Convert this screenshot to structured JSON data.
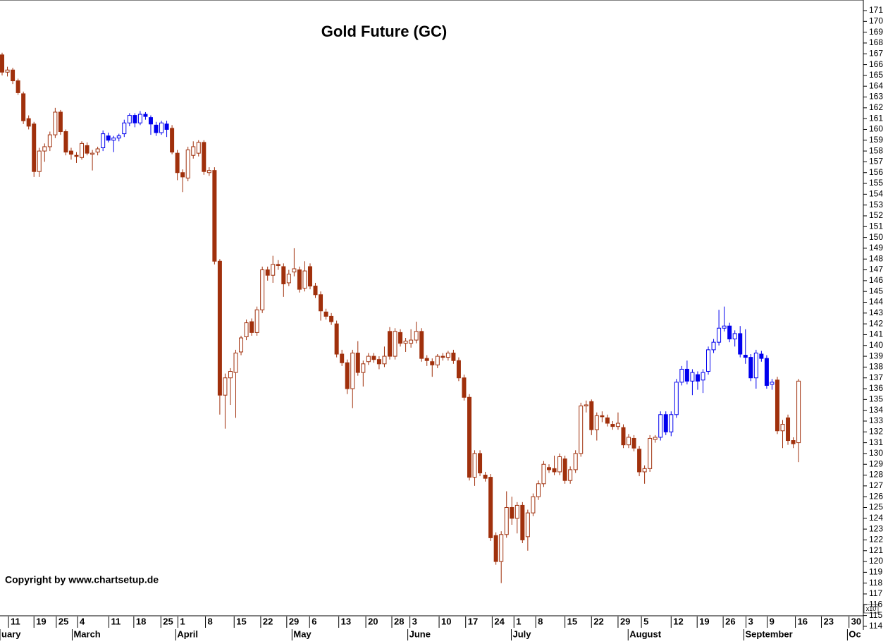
{
  "chart_data": {
    "type": "candlestick",
    "title": "Gold Future  (GC)",
    "copyright": "Copyright by www.chartsetup.de",
    "y_unit_label": "x10",
    "ylim": [
      113.67,
      171.98
    ],
    "xlim": [
      -0.4,
      161.8
    ],
    "yticks": [
      114,
      115,
      116,
      117,
      118,
      119,
      120,
      121,
      122,
      123,
      124,
      125,
      126,
      127,
      128,
      129,
      130,
      131,
      132,
      133,
      134,
      135,
      136,
      137,
      138,
      139,
      140,
      141,
      142,
      143,
      144,
      145,
      146,
      147,
      148,
      149,
      150,
      151,
      152,
      153,
      154,
      155,
      156,
      157,
      158,
      159,
      160,
      161,
      162,
      163,
      164,
      165,
      166,
      167,
      168,
      169,
      170,
      171
    ],
    "xticks": [
      {
        "value": 1.2,
        "label": "11"
      },
      {
        "value": 6,
        "label": "19"
      },
      {
        "value": 10.2,
        "label": "25"
      },
      {
        "value": 14.2,
        "label": "4"
      },
      {
        "value": 20.1,
        "label": "11"
      },
      {
        "value": 24.8,
        "label": "18"
      },
      {
        "value": 29.9,
        "label": "25"
      },
      {
        "value": 33.1,
        "label": "1"
      },
      {
        "value": 38.3,
        "label": "8"
      },
      {
        "value": 43.7,
        "label": "15"
      },
      {
        "value": 48.7,
        "label": "22"
      },
      {
        "value": 53.6,
        "label": "29"
      },
      {
        "value": 57.9,
        "label": "6"
      },
      {
        "value": 63.4,
        "label": "13"
      },
      {
        "value": 68.5,
        "label": "20"
      },
      {
        "value": 73.4,
        "label": "28"
      },
      {
        "value": 76.8,
        "label": "3"
      },
      {
        "value": 82.3,
        "label": "10"
      },
      {
        "value": 87.3,
        "label": "17"
      },
      {
        "value": 92.3,
        "label": "24"
      },
      {
        "value": 96.4,
        "label": "1"
      },
      {
        "value": 100.5,
        "label": "8"
      },
      {
        "value": 106,
        "label": "15"
      },
      {
        "value": 111,
        "label": "22"
      },
      {
        "value": 116,
        "label": "29"
      },
      {
        "value": 120.4,
        "label": "5"
      },
      {
        "value": 126,
        "label": "12"
      },
      {
        "value": 130.9,
        "label": "19"
      },
      {
        "value": 135.8,
        "label": "26"
      },
      {
        "value": 140.1,
        "label": "3"
      },
      {
        "value": 144.1,
        "label": "9"
      },
      {
        "value": 149.4,
        "label": "16"
      },
      {
        "value": 154.3,
        "label": "23"
      },
      {
        "value": 159.5,
        "label": "30"
      }
    ],
    "months": [
      {
        "value": -0.4,
        "label": "uary"
      },
      {
        "value": 13.2,
        "label": "March"
      },
      {
        "value": 32.7,
        "label": "April"
      },
      {
        "value": 54.6,
        "label": "May"
      },
      {
        "value": 76.4,
        "label": "June"
      },
      {
        "value": 95.9,
        "label": "July"
      },
      {
        "value": 117.9,
        "label": "August"
      },
      {
        "value": 139.7,
        "label": "September"
      },
      {
        "value": 159.2,
        "label": "Oc"
      }
    ],
    "segments": [
      {
        "color": "#a0300c",
        "candles": [
          [
            166.9,
            167.1,
            165,
            165.3
          ],
          [
            165.3,
            165.8,
            164.9,
            165.5
          ],
          [
            165.5,
            165.7,
            164.2,
            164.5
          ],
          [
            164.5,
            164.7,
            163.2,
            163.4
          ],
          [
            163.3,
            163.5,
            160.5,
            160.8
          ],
          [
            161,
            161.3,
            160,
            160.3
          ],
          [
            160.5,
            160.7,
            155.6,
            156.1
          ],
          [
            156.1,
            158.3,
            155.6,
            158
          ],
          [
            158,
            158.7,
            157,
            158.4
          ],
          [
            158.4,
            159.8,
            158,
            159.5
          ],
          [
            159.5,
            162,
            159.2,
            161.6
          ],
          [
            161.6,
            161.8,
            159.5,
            159.8
          ],
          [
            159.8,
            160,
            157.6,
            157.9
          ],
          [
            158,
            158.3,
            157.2,
            157.7
          ],
          [
            157.6,
            157.9,
            156.9,
            157.5
          ],
          [
            157.4,
            158.9,
            157.2,
            158.7
          ],
          [
            158.5,
            158.8,
            157.6,
            157.8
          ],
          [
            157.7,
            158.1,
            156.2,
            157.8
          ],
          [
            157.9,
            158.4,
            157.6,
            158.2
          ]
        ]
      },
      {
        "color": "#0000ee",
        "candles": [
          [
            158.3,
            159.9,
            158,
            159.6
          ],
          [
            159.4,
            159.7,
            158.8,
            159
          ],
          [
            159,
            159.4,
            157.9,
            159.2
          ],
          [
            159.2,
            159.6,
            158.9,
            159.4
          ],
          [
            159.6,
            160.9,
            159.3,
            160.6
          ],
          [
            160.6,
            161.5,
            160.3,
            161.3
          ],
          [
            161.3,
            161.5,
            160.2,
            160.6
          ],
          [
            160.6,
            161.7,
            160.4,
            161.4
          ],
          [
            161.4,
            161.6,
            160.9,
            161.2
          ],
          [
            161.1,
            161.3,
            159.5,
            160.5
          ],
          [
            160.4,
            160.7,
            159.4,
            159.7
          ],
          [
            159.7,
            160.8,
            159.5,
            160.6
          ],
          [
            160.5,
            160.8,
            159.3,
            160
          ]
        ]
      },
      {
        "color": "#a0300c",
        "candles": [
          [
            160.1,
            160.4,
            157.7,
            157.9
          ],
          [
            157.8,
            158.1,
            155.3,
            156
          ],
          [
            156,
            156.3,
            154.2,
            155.6
          ],
          [
            155.5,
            158.4,
            155.2,
            158.1
          ],
          [
            157.6,
            158.9,
            157.3,
            158.4
          ],
          [
            157.8,
            159,
            157.5,
            158.8
          ],
          [
            158.8,
            159,
            155.8,
            156.1
          ],
          [
            156,
            156.5,
            155.7,
            156.2
          ],
          [
            156.2,
            156.5,
            147.5,
            147.8
          ],
          [
            147.8,
            148,
            133.6,
            135.4
          ],
          [
            135.4,
            137.4,
            132.3,
            137
          ],
          [
            137,
            137.9,
            134.5,
            137.6
          ],
          [
            137.5,
            139.6,
            133.3,
            139.3
          ],
          [
            139.4,
            140.9,
            139.1,
            140.7
          ],
          [
            140.8,
            142.4,
            140.5,
            142.1
          ],
          [
            142.2,
            142.5,
            140.9,
            141.2
          ],
          [
            141.2,
            143.6,
            140.9,
            143.3
          ],
          [
            143.3,
            147.3,
            143,
            147
          ],
          [
            147,
            147.3,
            146,
            146.5
          ],
          [
            146.5,
            148.3,
            145.8,
            147.5
          ],
          [
            147.5,
            147.9,
            147,
            147.4
          ],
          [
            147.3,
            147.6,
            144.5,
            145.7
          ],
          [
            145.8,
            147,
            145.5,
            146.6
          ],
          [
            146.8,
            149,
            146.4,
            147.1
          ],
          [
            147,
            147.3,
            144.9,
            145.2
          ],
          [
            145.3,
            147.8,
            145,
            146.9
          ],
          [
            147.3,
            147.6,
            145.2,
            145.5
          ],
          [
            145.5,
            145.8,
            144.4,
            144.7
          ],
          [
            144.7,
            145,
            142.3,
            143.2
          ],
          [
            143.1,
            143.4,
            142.4,
            142.7
          ],
          [
            142.7,
            143,
            141.9,
            142.2
          ],
          [
            142,
            142.3,
            138.9,
            139.2
          ],
          [
            139.2,
            139.6,
            138.1,
            138.4
          ],
          [
            138.4,
            138.7,
            135.5,
            136
          ],
          [
            136,
            139.6,
            134.2,
            139.3
          ],
          [
            139.3,
            140.4,
            137.2,
            137.5
          ],
          [
            137.5,
            138.6,
            136.2,
            138.3
          ],
          [
            138.5,
            139.3,
            138.2,
            139
          ],
          [
            139,
            139.3,
            138.4,
            138.7
          ],
          [
            138.7,
            139,
            137.8,
            138.3
          ],
          [
            138.3,
            139.9,
            138,
            139
          ],
          [
            141.3,
            141.7,
            138.7,
            139
          ],
          [
            139,
            141.6,
            138.7,
            141.3
          ],
          [
            141.2,
            141.5,
            139.9,
            140.2
          ],
          [
            140.2,
            140.7,
            139.4,
            140.4
          ],
          [
            140.2,
            141.5,
            139.8,
            140.5
          ],
          [
            140.5,
            142.2,
            140.2,
            141.3
          ],
          [
            141.3,
            141.6,
            138.5,
            138.8
          ],
          [
            138.8,
            139.1,
            138.1,
            138.6
          ],
          [
            138.5,
            138.8,
            137.1,
            138.2
          ],
          [
            138.2,
            139.2,
            137.9,
            139
          ],
          [
            139,
            139.3,
            138.6,
            138.9
          ],
          [
            138.9,
            139.5,
            138.6,
            139.3
          ],
          [
            139.3,
            139.6,
            138.3,
            138.6
          ],
          [
            138.6,
            138.9,
            136.7,
            137
          ],
          [
            137,
            137.3,
            134.9,
            135.2
          ],
          [
            135.2,
            135.5,
            127.5,
            127.8
          ],
          [
            127.8,
            130.3,
            127,
            130
          ],
          [
            130,
            130.3,
            127.9,
            128.2
          ],
          [
            128,
            128.3,
            127.4,
            127.7
          ],
          [
            127.8,
            128.1,
            121.9,
            122.2
          ],
          [
            122.4,
            122.7,
            119.7,
            120
          ],
          [
            120,
            122.8,
            118,
            122.5
          ],
          [
            122.5,
            126.5,
            122.2,
            125
          ],
          [
            125,
            126,
            123.4,
            124
          ],
          [
            124,
            125.5,
            122.6,
            125.2
          ],
          [
            125.2,
            125.5,
            121.7,
            122
          ],
          [
            122.3,
            124.8,
            121,
            124.5
          ],
          [
            124.5,
            126.3,
            124.2,
            126
          ],
          [
            126,
            127.5,
            125.7,
            127.2
          ],
          [
            127.2,
            129.3,
            126.9,
            129
          ],
          [
            128.7,
            129,
            128.2,
            128.5
          ],
          [
            128.6,
            129.8,
            128,
            128.3
          ],
          [
            128.3,
            130,
            128,
            129.7
          ],
          [
            129.5,
            129.8,
            127.2,
            127.5
          ],
          [
            127.5,
            128.8,
            127.2,
            128.5
          ],
          [
            128.5,
            130.3,
            128.2,
            130
          ],
          [
            130,
            134.7,
            129.7,
            134.4
          ],
          [
            134.4,
            134.9,
            133.8,
            134.5
          ],
          [
            134.8,
            135,
            131.7,
            132.2
          ],
          [
            132.2,
            133.8,
            131.2,
            133.5
          ],
          [
            133.5,
            133.9,
            132.9,
            133.4
          ],
          [
            133.3,
            133.6,
            132.5,
            132.8
          ],
          [
            132.7,
            133,
            132.2,
            132.5
          ],
          [
            132.5,
            133.8,
            132.2,
            132.8
          ],
          [
            132.4,
            132.7,
            130.5,
            130.8
          ],
          [
            130.8,
            131.8,
            130.5,
            131.5
          ],
          [
            131.4,
            131.7,
            130.2,
            130.5
          ],
          [
            130.4,
            130.7,
            127.9,
            128.3
          ],
          [
            128.3,
            128.9,
            127.2,
            128.6
          ],
          [
            128.6,
            131.7,
            128.3,
            131.4
          ],
          [
            131.3,
            131.7,
            131,
            131.5
          ]
        ]
      },
      {
        "color": "#0000ee",
        "candles": [
          [
            131.5,
            133.9,
            131.2,
            133.6
          ],
          [
            133.6,
            133.9,
            131.7,
            132
          ],
          [
            132,
            133.9,
            131.6,
            133.6
          ],
          [
            133.6,
            136.9,
            133.3,
            136.6
          ],
          [
            136.6,
            138.1,
            136.3,
            137.8
          ],
          [
            137.8,
            138.6,
            136.4,
            136.7
          ],
          [
            136.7,
            137.8,
            135.4,
            137.5
          ],
          [
            137.3,
            137.6,
            135.9,
            136.7
          ],
          [
            136.8,
            137.8,
            135.6,
            137.5
          ],
          [
            137.6,
            139.9,
            137.3,
            139.6
          ],
          [
            139.6,
            140.6,
            139.3,
            140.3
          ],
          [
            140.3,
            143.3,
            140,
            141.6
          ],
          [
            141.6,
            143.6,
            141.3,
            141.8
          ],
          [
            141.8,
            142.1,
            140.3,
            140.6
          ],
          [
            140.6,
            141.4,
            139.9,
            141.1
          ],
          [
            141.1,
            141.8,
            138.9,
            139.2
          ],
          [
            139.1,
            141.5,
            138.3,
            138.9
          ],
          [
            138.9,
            139.2,
            136.7,
            137
          ],
          [
            137,
            139.6,
            136,
            139.3
          ],
          [
            139.2,
            139.5,
            138.5,
            138.8
          ],
          [
            138.8,
            139.1,
            136,
            136.3
          ],
          [
            136.4,
            136.9,
            135.9,
            136.6
          ]
        ]
      },
      {
        "color": "#a0300c",
        "candles": [
          [
            136.8,
            137.1,
            131.8,
            132.1
          ],
          [
            132.1,
            133.1,
            130.5,
            132.7
          ],
          [
            133.3,
            133.6,
            130.8,
            131.2
          ],
          [
            131.2,
            131.5,
            130.5,
            130.9
          ],
          [
            131,
            136.9,
            129.2,
            136.7
          ]
        ]
      }
    ]
  }
}
